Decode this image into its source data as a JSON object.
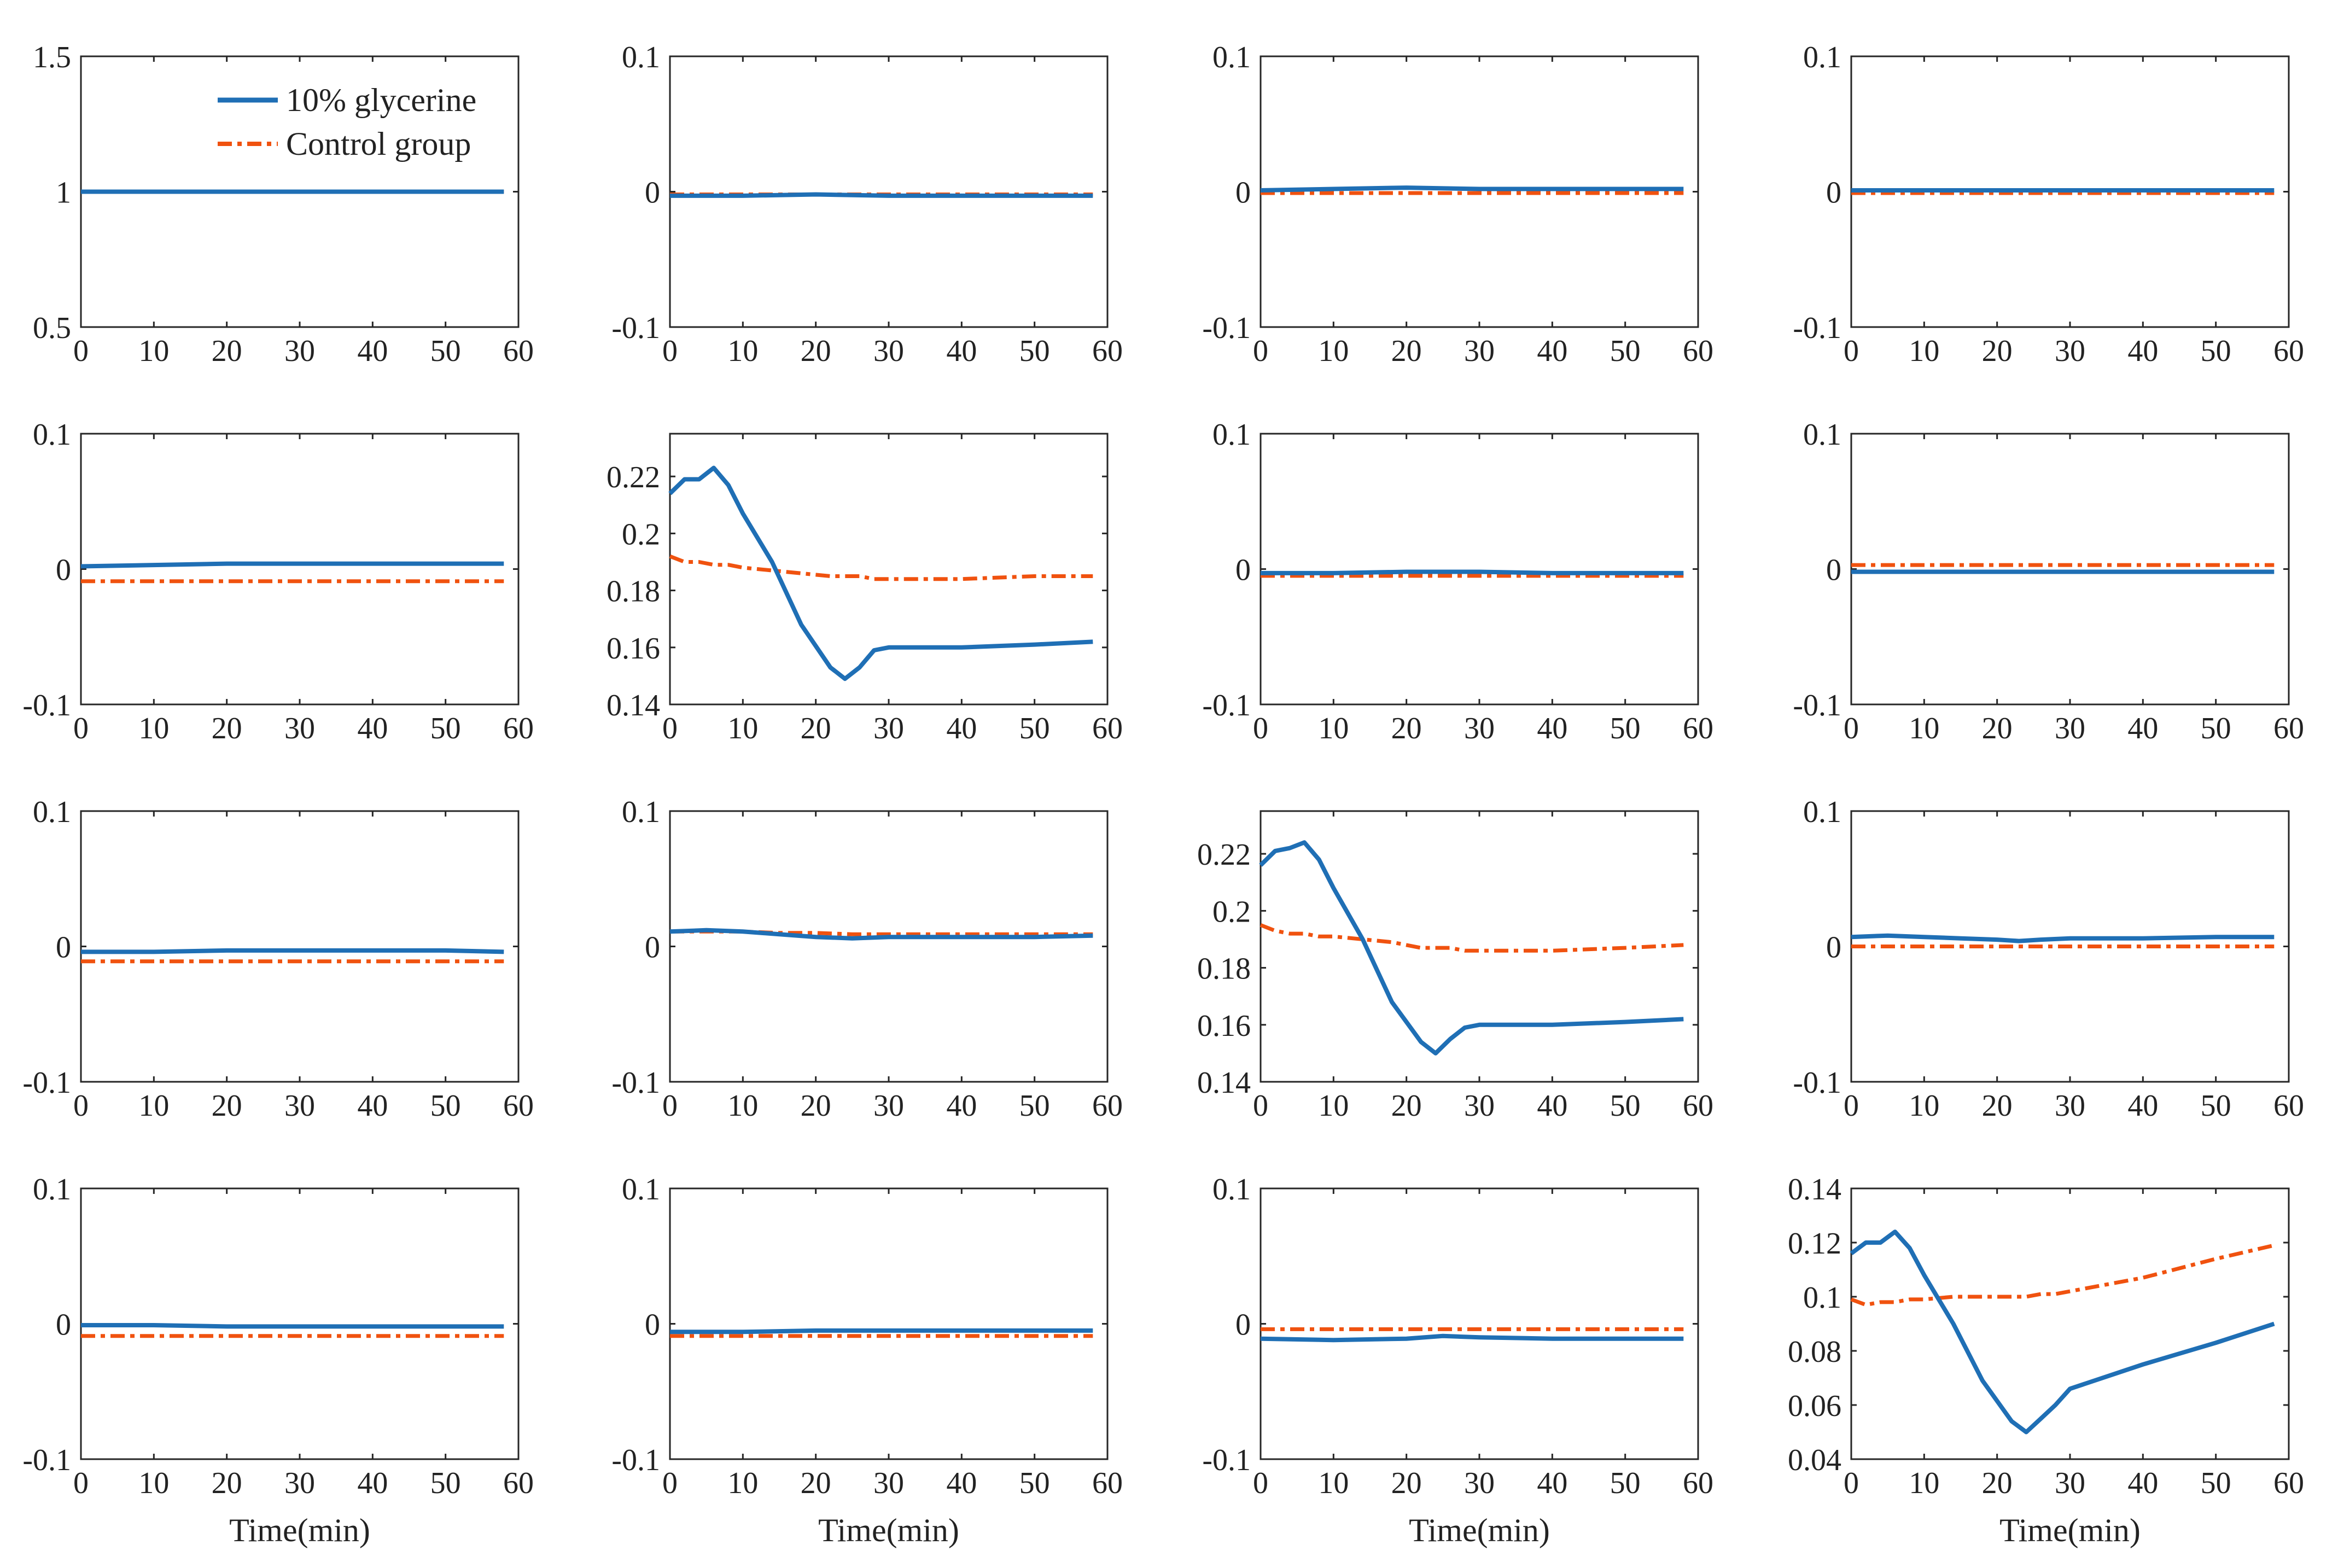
{
  "legend": {
    "series_a": "10% glycerine",
    "series_b": "Control group"
  },
  "colors": {
    "series_a": "#1f6fb5",
    "series_b": "#f0520f",
    "axes": "#262626"
  },
  "x_axis": {
    "label": "Time(min)",
    "ticks": [
      0,
      10,
      20,
      30,
      40,
      50,
      60
    ],
    "xlim": [
      0,
      60
    ]
  },
  "chart_data": [
    {
      "type": "line",
      "row": 1,
      "col": 1,
      "ylim": [
        0.5,
        1.5
      ],
      "yticks": [
        "0.5",
        "1",
        "1.5"
      ],
      "legend": true,
      "x": [
        0,
        10,
        20,
        30,
        40,
        50,
        58
      ],
      "series": [
        {
          "name": "10% glycerine",
          "values": [
            1,
            1,
            1,
            1,
            1,
            1,
            1
          ]
        },
        {
          "name": "Control group",
          "values": [
            1,
            1,
            1,
            1,
            1,
            1,
            1
          ]
        }
      ]
    },
    {
      "type": "line",
      "row": 1,
      "col": 2,
      "ylim": [
        -0.1,
        0.1
      ],
      "yticks": [
        "-0.1",
        "0",
        "0.1"
      ],
      "x": [
        0,
        10,
        20,
        30,
        40,
        50,
        58
      ],
      "series": [
        {
          "name": "10% glycerine",
          "values": [
            -0.003,
            -0.003,
            -0.002,
            -0.003,
            -0.003,
            -0.003,
            -0.003
          ]
        },
        {
          "name": "Control group",
          "values": [
            -0.002,
            -0.002,
            -0.002,
            -0.002,
            -0.002,
            -0.002,
            -0.002
          ]
        }
      ]
    },
    {
      "type": "line",
      "row": 1,
      "col": 3,
      "ylim": [
        -0.1,
        0.1
      ],
      "yticks": [
        "-0.1",
        "0",
        "0.1"
      ],
      "x": [
        0,
        10,
        20,
        30,
        40,
        50,
        58
      ],
      "series": [
        {
          "name": "10% glycerine",
          "values": [
            0.001,
            0.002,
            0.003,
            0.002,
            0.002,
            0.002,
            0.002
          ]
        },
        {
          "name": "Control group",
          "values": [
            -0.001,
            -0.001,
            -0.001,
            -0.001,
            -0.001,
            -0.001,
            -0.001
          ]
        }
      ]
    },
    {
      "type": "line",
      "row": 1,
      "col": 4,
      "ylim": [
        -0.1,
        0.1
      ],
      "yticks": [
        "-0.1",
        "0",
        "0.1"
      ],
      "x": [
        0,
        10,
        20,
        30,
        40,
        50,
        58
      ],
      "series": [
        {
          "name": "10% glycerine",
          "values": [
            0.001,
            0.001,
            0.001,
            0.001,
            0.001,
            0.001,
            0.001
          ]
        },
        {
          "name": "Control group",
          "values": [
            -0.001,
            -0.001,
            -0.001,
            -0.001,
            -0.001,
            -0.001,
            -0.001
          ]
        }
      ]
    },
    {
      "type": "line",
      "row": 2,
      "col": 1,
      "ylim": [
        -0.1,
        0.1
      ],
      "yticks": [
        "-0.1",
        "0",
        "0.1"
      ],
      "x": [
        0,
        10,
        20,
        30,
        40,
        50,
        58
      ],
      "series": [
        {
          "name": "10% glycerine",
          "values": [
            0.002,
            0.003,
            0.004,
            0.004,
            0.004,
            0.004,
            0.004
          ]
        },
        {
          "name": "Control group",
          "values": [
            -0.009,
            -0.009,
            -0.009,
            -0.009,
            -0.009,
            -0.009,
            -0.009
          ]
        }
      ]
    },
    {
      "type": "line",
      "row": 2,
      "col": 2,
      "ylim": [
        0.14,
        0.235
      ],
      "yticks": [
        "0.14",
        "0.16",
        "0.18",
        "0.2",
        "0.22"
      ],
      "x": [
        0,
        2,
        4,
        6,
        8,
        10,
        14,
        18,
        22,
        24,
        26,
        28,
        30,
        40,
        50,
        58
      ],
      "series": [
        {
          "name": "10% glycerine",
          "values": [
            0.214,
            0.219,
            0.219,
            0.223,
            0.217,
            0.207,
            0.19,
            0.168,
            0.153,
            0.149,
            0.153,
            0.159,
            0.16,
            0.16,
            0.161,
            0.162
          ]
        },
        {
          "name": "Control group",
          "values": [
            0.192,
            0.19,
            0.19,
            0.189,
            0.189,
            0.188,
            0.187,
            0.186,
            0.185,
            0.185,
            0.185,
            0.184,
            0.184,
            0.184,
            0.185,
            0.185
          ]
        }
      ]
    },
    {
      "type": "line",
      "row": 2,
      "col": 3,
      "ylim": [
        -0.1,
        0.1
      ],
      "yticks": [
        "-0.1",
        "0",
        "0.1"
      ],
      "x": [
        0,
        10,
        20,
        30,
        40,
        50,
        58
      ],
      "series": [
        {
          "name": "10% glycerine",
          "values": [
            -0.003,
            -0.003,
            -0.002,
            -0.002,
            -0.003,
            -0.003,
            -0.003
          ]
        },
        {
          "name": "Control group",
          "values": [
            -0.005,
            -0.005,
            -0.005,
            -0.005,
            -0.005,
            -0.005,
            -0.005
          ]
        }
      ]
    },
    {
      "type": "line",
      "row": 2,
      "col": 4,
      "ylim": [
        -0.1,
        0.1
      ],
      "yticks": [
        "-0.1",
        "0",
        "0.1"
      ],
      "x": [
        0,
        10,
        20,
        30,
        40,
        50,
        58
      ],
      "series": [
        {
          "name": "10% glycerine",
          "values": [
            -0.002,
            -0.002,
            -0.002,
            -0.002,
            -0.002,
            -0.002,
            -0.002
          ]
        },
        {
          "name": "Control group",
          "values": [
            0.003,
            0.003,
            0.003,
            0.003,
            0.003,
            0.003,
            0.003
          ]
        }
      ]
    },
    {
      "type": "line",
      "row": 3,
      "col": 1,
      "ylim": [
        -0.1,
        0.1
      ],
      "yticks": [
        "-0.1",
        "0",
        "0.1"
      ],
      "x": [
        0,
        10,
        20,
        30,
        40,
        50,
        58
      ],
      "series": [
        {
          "name": "10% glycerine",
          "values": [
            -0.004,
            -0.004,
            -0.003,
            -0.003,
            -0.003,
            -0.003,
            -0.004
          ]
        },
        {
          "name": "Control group",
          "values": [
            -0.011,
            -0.011,
            -0.011,
            -0.011,
            -0.011,
            -0.011,
            -0.011
          ]
        }
      ]
    },
    {
      "type": "line",
      "row": 3,
      "col": 2,
      "ylim": [
        -0.1,
        0.1
      ],
      "yticks": [
        "-0.1",
        "0",
        "0.1"
      ],
      "x": [
        0,
        5,
        10,
        15,
        20,
        25,
        30,
        40,
        50,
        58
      ],
      "series": [
        {
          "name": "10% glycerine",
          "values": [
            0.011,
            0.012,
            0.011,
            0.009,
            0.007,
            0.006,
            0.007,
            0.007,
            0.007,
            0.008
          ]
        },
        {
          "name": "Control group",
          "values": [
            0.011,
            0.011,
            0.011,
            0.01,
            0.01,
            0.009,
            0.009,
            0.009,
            0.009,
            0.009
          ]
        }
      ]
    },
    {
      "type": "line",
      "row": 3,
      "col": 3,
      "ylim": [
        0.14,
        0.235
      ],
      "yticks": [
        "0.14",
        "0.16",
        "0.18",
        "0.2",
        "0.22"
      ],
      "x": [
        0,
        2,
        4,
        6,
        8,
        10,
        14,
        18,
        22,
        24,
        26,
        28,
        30,
        40,
        50,
        58
      ],
      "series": [
        {
          "name": "10% glycerine",
          "values": [
            0.216,
            0.221,
            0.222,
            0.224,
            0.218,
            0.208,
            0.19,
            0.168,
            0.154,
            0.15,
            0.155,
            0.159,
            0.16,
            0.16,
            0.161,
            0.162
          ]
        },
        {
          "name": "Control group",
          "values": [
            0.195,
            0.193,
            0.192,
            0.192,
            0.191,
            0.191,
            0.19,
            0.189,
            0.187,
            0.187,
            0.187,
            0.186,
            0.186,
            0.186,
            0.187,
            0.188
          ]
        }
      ]
    },
    {
      "type": "line",
      "row": 3,
      "col": 4,
      "ylim": [
        -0.1,
        0.1
      ],
      "yticks": [
        "-0.1",
        "0",
        "0.1"
      ],
      "x": [
        0,
        5,
        10,
        15,
        20,
        23,
        26,
        30,
        40,
        50,
        58
      ],
      "series": [
        {
          "name": "10% glycerine",
          "values": [
            0.007,
            0.008,
            0.007,
            0.006,
            0.005,
            0.004,
            0.005,
            0.006,
            0.006,
            0.007,
            0.007
          ]
        },
        {
          "name": "Control group",
          "values": [
            0,
            0,
            0,
            0,
            0,
            0,
            0,
            0,
            0,
            0,
            0
          ]
        }
      ]
    },
    {
      "type": "line",
      "row": 4,
      "col": 1,
      "ylim": [
        -0.1,
        0.1
      ],
      "yticks": [
        "-0.1",
        "0",
        "0.1"
      ],
      "x": [
        0,
        10,
        20,
        30,
        40,
        50,
        58
      ],
      "series": [
        {
          "name": "10% glycerine",
          "values": [
            -0.001,
            -0.001,
            -0.002,
            -0.002,
            -0.002,
            -0.002,
            -0.002
          ]
        },
        {
          "name": "Control group",
          "values": [
            -0.009,
            -0.009,
            -0.009,
            -0.009,
            -0.009,
            -0.009,
            -0.009
          ]
        }
      ]
    },
    {
      "type": "line",
      "row": 4,
      "col": 2,
      "ylim": [
        -0.1,
        0.1
      ],
      "yticks": [
        "-0.1",
        "0",
        "0.1"
      ],
      "x": [
        0,
        10,
        20,
        30,
        40,
        50,
        58
      ],
      "series": [
        {
          "name": "10% glycerine",
          "values": [
            -0.006,
            -0.006,
            -0.005,
            -0.005,
            -0.005,
            -0.005,
            -0.005
          ]
        },
        {
          "name": "Control group",
          "values": [
            -0.009,
            -0.009,
            -0.009,
            -0.009,
            -0.009,
            -0.009,
            -0.009
          ]
        }
      ]
    },
    {
      "type": "line",
      "row": 4,
      "col": 3,
      "ylim": [
        -0.1,
        0.1
      ],
      "yticks": [
        "-0.1",
        "0",
        "0.1"
      ],
      "x": [
        0,
        10,
        20,
        25,
        30,
        40,
        50,
        58
      ],
      "series": [
        {
          "name": "10% glycerine",
          "values": [
            -0.011,
            -0.012,
            -0.011,
            -0.009,
            -0.01,
            -0.011,
            -0.011,
            -0.011
          ]
        },
        {
          "name": "Control group",
          "values": [
            -0.004,
            -0.004,
            -0.004,
            -0.004,
            -0.004,
            -0.004,
            -0.004,
            -0.004
          ]
        }
      ]
    },
    {
      "type": "line",
      "row": 4,
      "col": 4,
      "ylim": [
        0.04,
        0.14
      ],
      "yticks": [
        "0.04",
        "0.06",
        "0.08",
        "0.1",
        "0.12",
        "0.14"
      ],
      "x": [
        0,
        2,
        4,
        6,
        8,
        10,
        14,
        18,
        22,
        24,
        26,
        28,
        30,
        40,
        50,
        58
      ],
      "series": [
        {
          "name": "10% glycerine",
          "values": [
            0.116,
            0.12,
            0.12,
            0.124,
            0.118,
            0.108,
            0.09,
            0.069,
            0.054,
            0.05,
            0.055,
            0.06,
            0.066,
            0.075,
            0.083,
            0.09
          ]
        },
        {
          "name": "Control group",
          "values": [
            0.099,
            0.097,
            0.098,
            0.098,
            0.099,
            0.099,
            0.1,
            0.1,
            0.1,
            0.1,
            0.101,
            0.101,
            0.102,
            0.107,
            0.114,
            0.119
          ]
        }
      ]
    }
  ]
}
